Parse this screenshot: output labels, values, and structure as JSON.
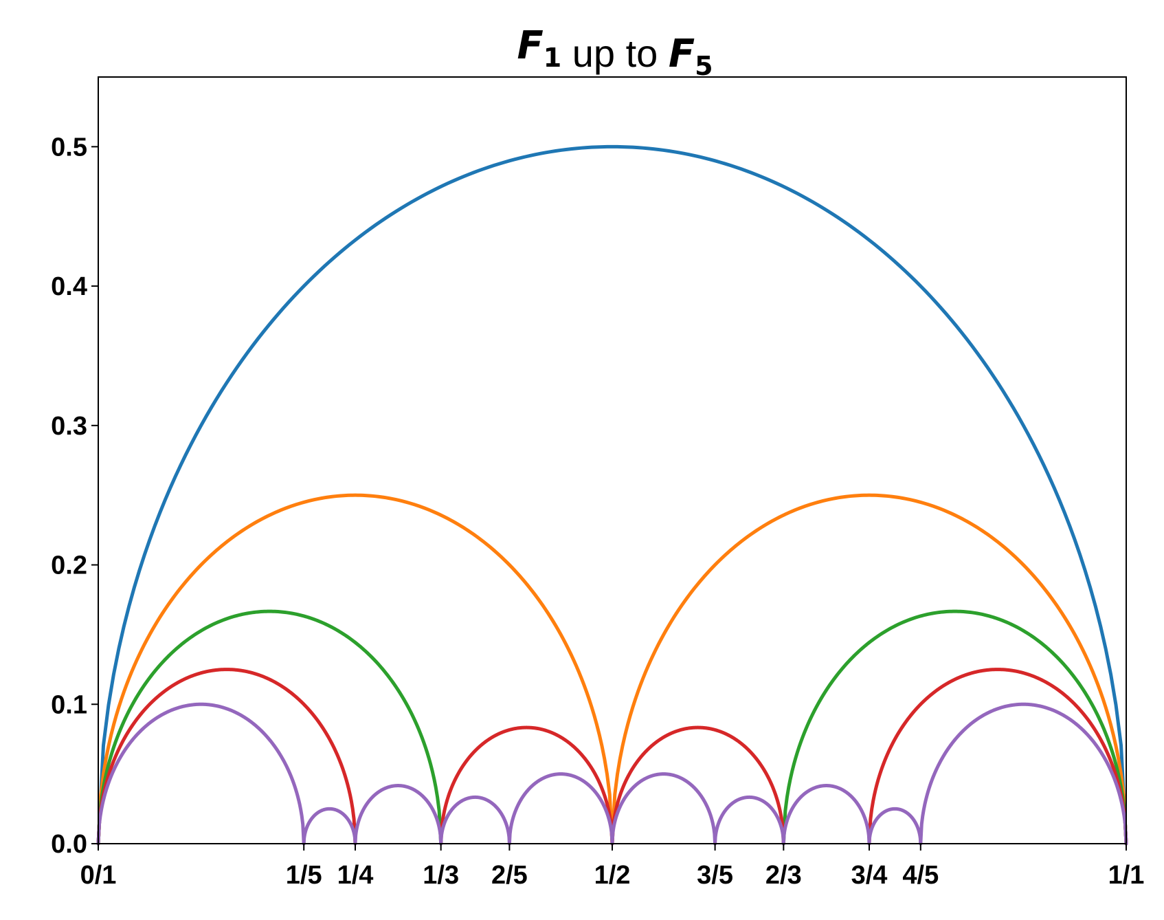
{
  "chart_data": {
    "type": "line",
    "title": {
      "parts": [
        {
          "text": "F",
          "sub": "1",
          "math": true
        },
        {
          "text": " up to ",
          "math": false
        },
        {
          "text": "F",
          "sub": "5",
          "math": true
        }
      ]
    },
    "xlabel": "",
    "ylabel": "",
    "xlim": [
      0,
      1
    ],
    "ylim": [
      0,
      0.55
    ],
    "grid": false,
    "legend": "none",
    "x_ticks": [
      {
        "value": 0.0,
        "label": "0/1"
      },
      {
        "value": 0.2,
        "label": "1/5"
      },
      {
        "value": 0.25,
        "label": "1/4"
      },
      {
        "value": 0.3333333,
        "label": "1/3"
      },
      {
        "value": 0.4,
        "label": "2/5"
      },
      {
        "value": 0.5,
        "label": "1/2"
      },
      {
        "value": 0.6,
        "label": "3/5"
      },
      {
        "value": 0.6666667,
        "label": "2/3"
      },
      {
        "value": 0.75,
        "label": "3/4"
      },
      {
        "value": 0.8,
        "label": "4/5"
      },
      {
        "value": 1.0,
        "label": "1/1"
      }
    ],
    "y_ticks": [
      {
        "value": 0.0,
        "label": "0.0"
      },
      {
        "value": 0.1,
        "label": "0.1"
      },
      {
        "value": 0.2,
        "label": "0.2"
      },
      {
        "value": 0.3,
        "label": "0.3"
      },
      {
        "value": 0.4,
        "label": "0.4"
      },
      {
        "value": 0.5,
        "label": "0.5"
      }
    ],
    "series": [
      {
        "color": "#1f77b4",
        "arcs": [
          [
            0,
            1
          ]
        ]
      },
      {
        "color": "#ff7f0e",
        "arcs": [
          [
            0,
            0.5
          ],
          [
            0.5,
            1
          ]
        ]
      },
      {
        "color": "#2ca02c",
        "arcs": [
          [
            0,
            0.3333333
          ],
          [
            0.6666667,
            1
          ]
        ]
      },
      {
        "color": "#d62728",
        "arcs": [
          [
            0,
            0.25
          ],
          [
            0.3333333,
            0.5
          ],
          [
            0.5,
            0.6666667
          ],
          [
            0.75,
            1
          ]
        ]
      },
      {
        "color": "#9467bd",
        "arcs": [
          [
            0,
            0.2
          ],
          [
            0.2,
            0.25
          ],
          [
            0.25,
            0.3333333
          ],
          [
            0.3333333,
            0.4
          ],
          [
            0.4,
            0.5
          ],
          [
            0.5,
            0.6
          ],
          [
            0.6,
            0.6666667
          ],
          [
            0.6666667,
            0.75
          ],
          [
            0.75,
            0.8
          ],
          [
            0.8,
            1
          ]
        ]
      }
    ]
  }
}
